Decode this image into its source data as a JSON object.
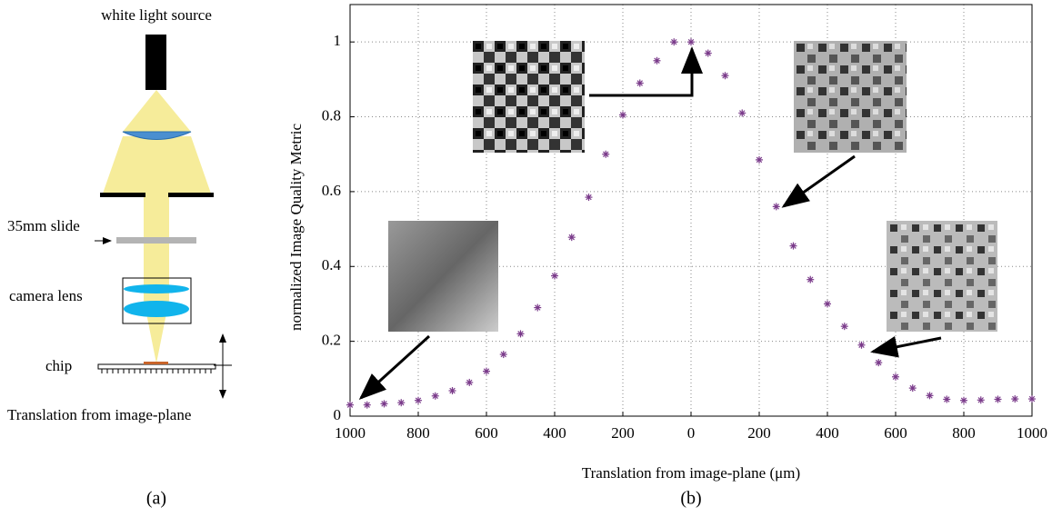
{
  "diagram": {
    "source": "white light source",
    "slide": "35mm slide",
    "lens": "camera lens",
    "chip": "chip",
    "translation": "Translation from image-plane",
    "caption": "(a)"
  },
  "chart_data": {
    "type": "scatter",
    "caption": "(b)",
    "x_label": "Translation from image-plane  (μm)",
    "y_label": "normalized Image Quality Metric",
    "color": "#7a3a8a",
    "grid": true,
    "xlim": [
      -1000,
      1000
    ],
    "ylim": [
      0,
      1.1
    ],
    "xticks": [
      {
        "value": -1000,
        "label": "1000"
      },
      {
        "value": -800,
        "label": "800"
      },
      {
        "value": -600,
        "label": "600"
      },
      {
        "value": -400,
        "label": "400"
      },
      {
        "value": -200,
        "label": "200"
      },
      0,
      200,
      400,
      600,
      800,
      1000
    ],
    "yticks": [
      0,
      0.2,
      0.4,
      0.6,
      0.8,
      1
    ],
    "x": [
      -1000,
      -950,
      -900,
      -850,
      -800,
      -750,
      -700,
      -650,
      -600,
      -550,
      -500,
      -450,
      -400,
      -350,
      -300,
      -250,
      -200,
      -150,
      -100,
      -50,
      0,
      50,
      100,
      150,
      200,
      250,
      300,
      350,
      400,
      450,
      500,
      550,
      600,
      650,
      700,
      750,
      800,
      850,
      900,
      950,
      1000
    ],
    "values": [
      0.03,
      0.03,
      0.033,
      0.036,
      0.042,
      0.054,
      0.068,
      0.09,
      0.12,
      0.165,
      0.22,
      0.29,
      0.375,
      0.478,
      0.585,
      0.7,
      0.805,
      0.89,
      0.95,
      1.0,
      1.0,
      0.97,
      0.91,
      0.81,
      0.685,
      0.56,
      0.455,
      0.365,
      0.3,
      0.24,
      0.19,
      0.143,
      0.105,
      0.075,
      0.055,
      0.045,
      0.042,
      0.043,
      0.045,
      0.046,
      0.046
    ]
  }
}
